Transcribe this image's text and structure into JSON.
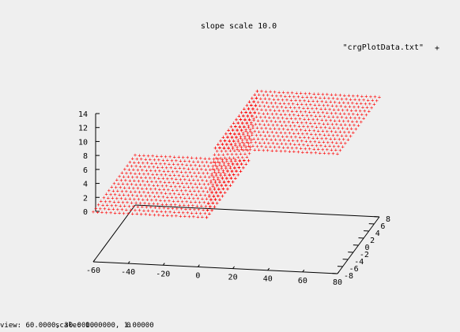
{
  "chart_data": {
    "type": "scatter",
    "title": "slope scale 10.0",
    "legend": {
      "label": "\"crgPlotData.txt\"",
      "marker": "+",
      "color": "#ff0000",
      "position": "top-right"
    },
    "xlim": [
      -60,
      80
    ],
    "ylim": [
      -8,
      8
    ],
    "zlim": [
      0,
      14
    ],
    "xticks": [
      "-60",
      "-40",
      "-20",
      "0",
      "20",
      "40",
      "60",
      "80"
    ],
    "yticks": [
      "-8",
      "-6",
      "-4",
      "-2",
      "0",
      "2",
      "4",
      "6",
      "8"
    ],
    "zticks": [
      "0",
      "2",
      "4",
      "6",
      "8",
      "10",
      "12",
      "14"
    ],
    "surface": {
      "low": {
        "x_range": [
          -60,
          5
        ],
        "y_range": [
          -8,
          8
        ],
        "z": 0
      },
      "ramp": {
        "x_range": [
          5,
          10
        ],
        "y_range": [
          -8,
          8
        ],
        "z_range": [
          0,
          10
        ]
      },
      "high": {
        "x_range": [
          10,
          80
        ],
        "y_range": [
          -8,
          8
        ],
        "z": 10
      }
    }
  },
  "status_bar": {
    "items": [
      "view: 60.0000, 30.0000",
      "scale: 1.00000, 1.00000",
      "0"
    ]
  }
}
